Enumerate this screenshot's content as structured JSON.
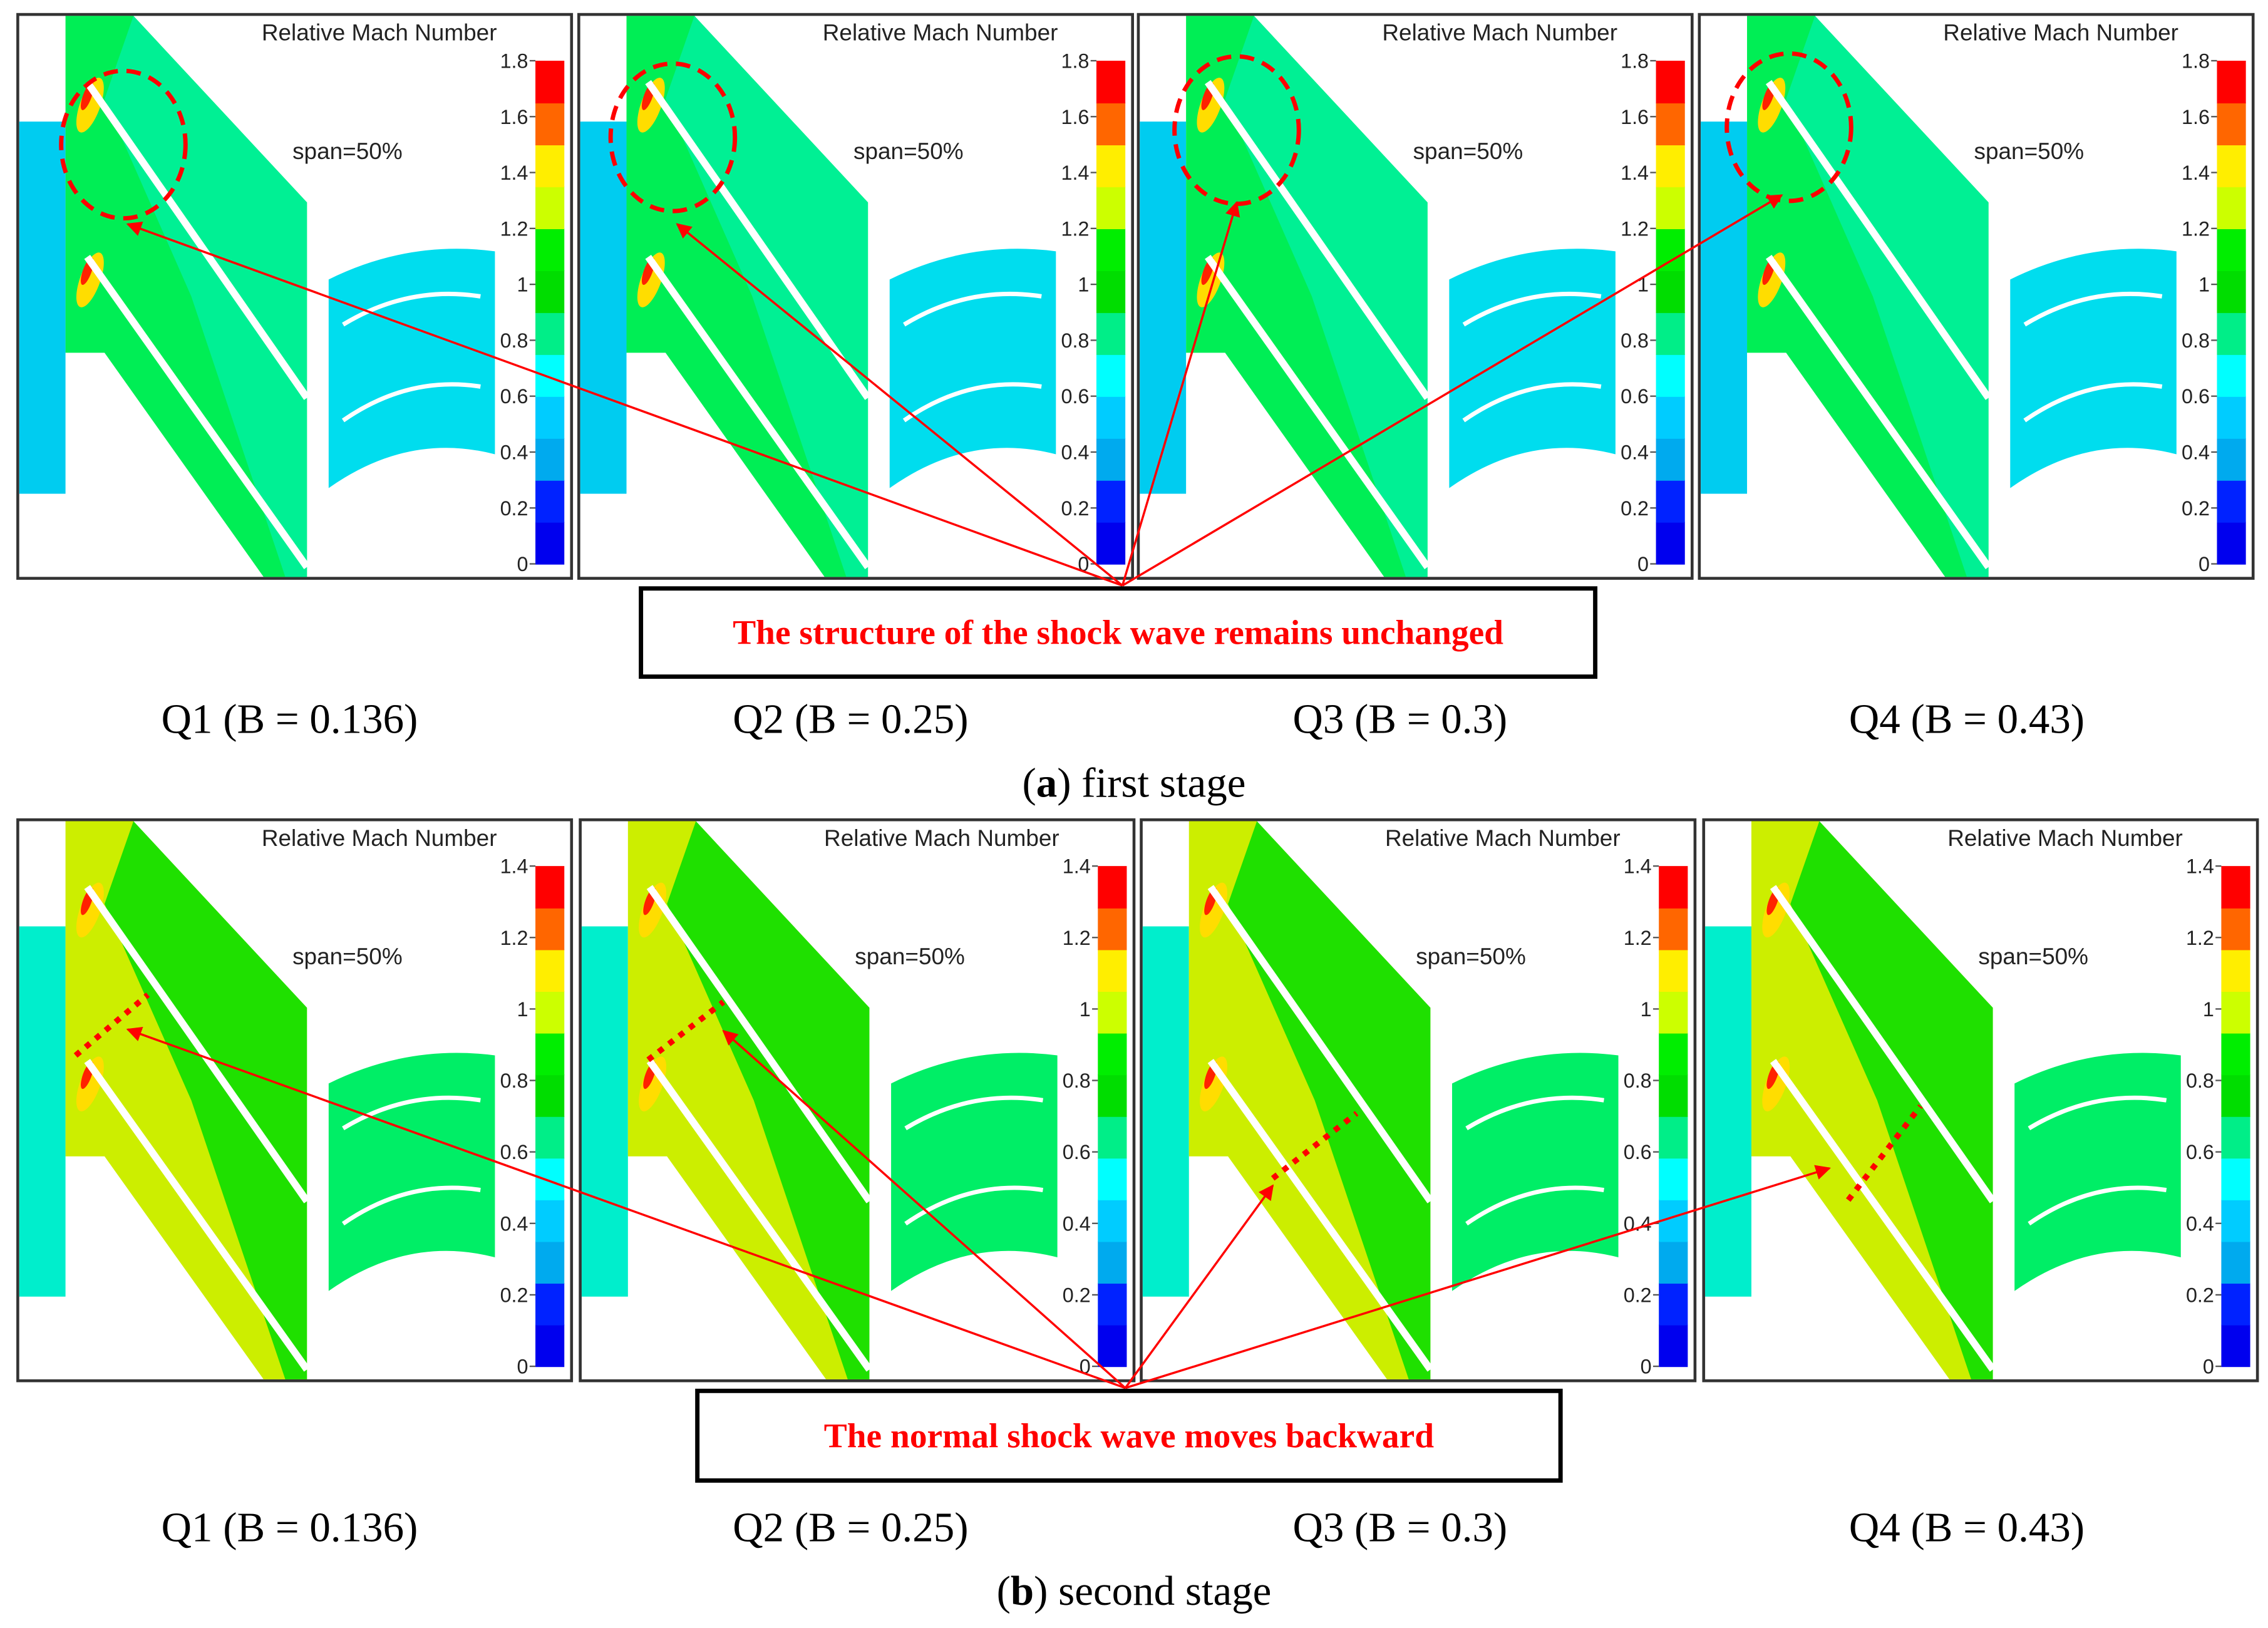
{
  "colorbar_colors": [
    "#0000ee",
    "#0022ff",
    "#00aaee",
    "#00ccff",
    "#00ffff",
    "#00ee88",
    "#00dd00",
    "#00ee00",
    "#ccff00",
    "#ffee00",
    "#ff6600",
    "#ff0000"
  ],
  "annotation_color": "#ff0000",
  "stages": [
    {
      "id": "a",
      "caption_letter": "a",
      "caption_text": " first stage",
      "callout": "The structure of the shock wave remains unchanged",
      "marker": "circle",
      "colorbar_ticks": [
        "1.8",
        "1.6",
        "1.4",
        "1.2",
        "1",
        "0.8",
        "0.6",
        "0.4",
        "0.2",
        "0"
      ],
      "rotor_color": "#00ee55",
      "rotor_alt_color": "#00f0a0",
      "inlet_color": "#00ccf0",
      "stator_color": "#00ddee",
      "panels": [
        {
          "title": "Relative Mach Number",
          "span": "span=50%",
          "label": "Q1 (B = 0.136)"
        },
        {
          "title": "Relative Mach Number",
          "span": "span=50%",
          "label": "Q2 (B = 0.25)"
        },
        {
          "title": "Relative Mach Number",
          "span": "span=50%",
          "label": "Q3 (B = 0.3)"
        },
        {
          "title": "Relative Mach Number",
          "span": "span=50%",
          "label": "Q4 (B = 0.43)"
        }
      ]
    },
    {
      "id": "b",
      "caption_letter": "b",
      "caption_text": " second stage",
      "callout": "The normal shock wave moves backward",
      "marker": "dotted-line",
      "colorbar_ticks": [
        "1.4",
        "1.2",
        "1",
        "0.8",
        "0.6",
        "0.4",
        "0.2",
        "0"
      ],
      "rotor_color": "#00dd00",
      "rotor_alt_color": "#ccee00",
      "inlet_color": "#00eecc",
      "stator_color": "#00ee66",
      "panels": [
        {
          "title": "Relative Mach Number",
          "span": "span=50%",
          "label": "Q1 (B = 0.136)"
        },
        {
          "title": "Relative Mach Number",
          "span": "span=50%",
          "label": "Q2 (B = 0.25)"
        },
        {
          "title": "Relative Mach Number",
          "span": "span=50%",
          "label": "Q3 (B = 0.3)"
        },
        {
          "title": "Relative Mach Number",
          "span": "span=50%",
          "label": "Q4 (B = 0.43)"
        }
      ]
    }
  ]
}
